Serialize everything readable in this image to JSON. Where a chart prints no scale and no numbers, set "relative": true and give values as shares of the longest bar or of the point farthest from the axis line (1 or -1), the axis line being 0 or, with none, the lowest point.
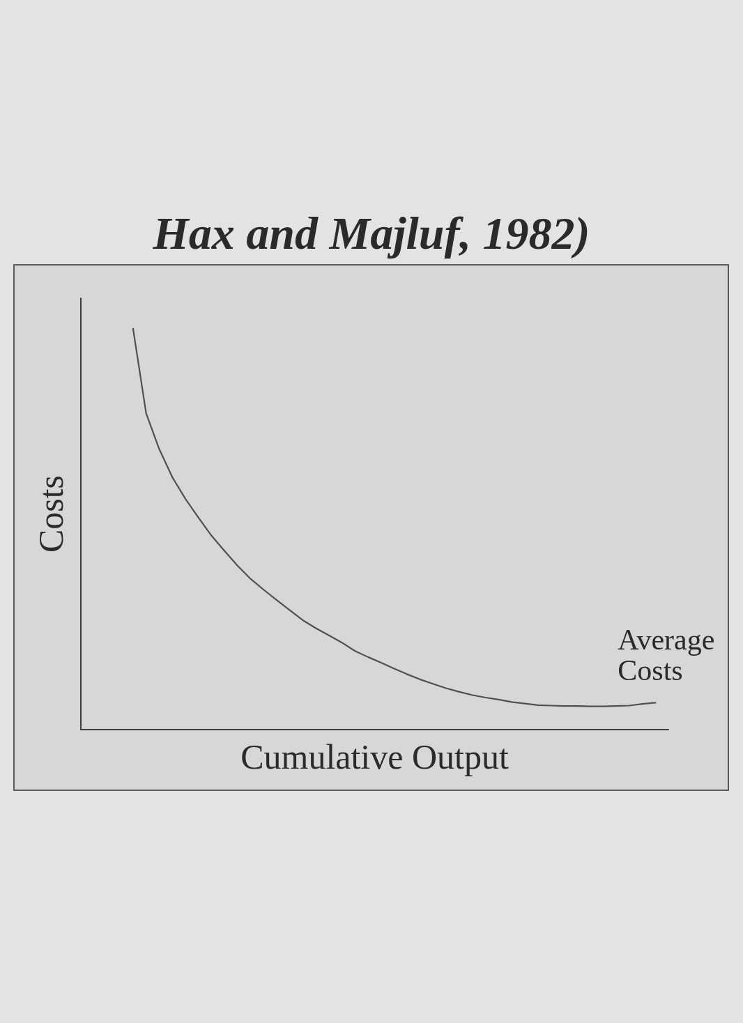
{
  "chart_data": {
    "type": "line",
    "title": "Hax and Majluf, 1982)",
    "xlabel": "Cumulative Output",
    "ylabel": "Costs",
    "relative": true,
    "categories": [
      null,
      null,
      null,
      null,
      null,
      null,
      null,
      null,
      null,
      null,
      null,
      null,
      null,
      null,
      null,
      null,
      null,
      null,
      null,
      null,
      null,
      null,
      null,
      null,
      null,
      null,
      null,
      null,
      null,
      null,
      null,
      null,
      null,
      null,
      null,
      null,
      null,
      null,
      null,
      null,
      null,
      null,
      null,
      null,
      null,
      null
    ],
    "series": [
      {
        "name": "Average Costs",
        "color": "#505050",
        "values": [
          null,
          null,
          null,
          null,
          1,
          0.789,
          0.7,
          0.63,
          0.576,
          0.529,
          0.484,
          0.446,
          0.409,
          0.376,
          0.349,
          0.323,
          0.298,
          0.273,
          0.253,
          0.235,
          0.217,
          0.196,
          0.181,
          0.167,
          0.152,
          0.138,
          0.125,
          0.114,
          0.103,
          0.094,
          0.086,
          0.08,
          0.075,
          0.069,
          0.065,
          0.061,
          0.06,
          0.059,
          0.059,
          0.058,
          0.058,
          0.059,
          0.06,
          0.064,
          0.067,
          null
        ]
      }
    ]
  }
}
